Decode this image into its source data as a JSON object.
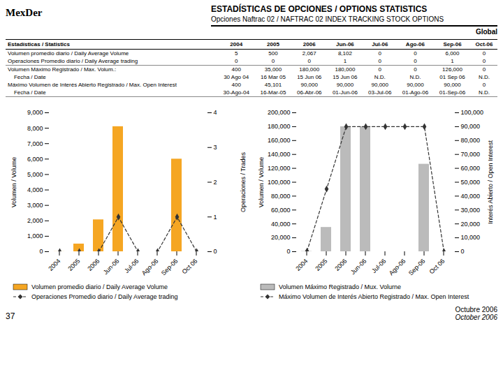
{
  "title": "ESTADÍSTICAS DE OPCIONES / OPTIONS STATISTICS",
  "subtitle": "Opciones Naftrac 02 / NAFTRAC 02 INDEX TRACKING STOCK OPTIONS",
  "annotations": [
    "MexDer",
    "Global",
    "37",
    "Octubre 2006",
    "October 2006"
  ],
  "table": {
    "header": [
      "Estadísticas / Statistics",
      "2004",
      "2005",
      "2006",
      "Jun-06",
      "Jul-06",
      "Ago-06",
      "Sep-06",
      "Oct-06"
    ],
    "sections": [
      [
        [
          "Volumen promedio diario / Daily Average Volume",
          "5",
          "500",
          "2,067",
          "8,102",
          "0",
          "0",
          "6,000",
          "0"
        ],
        [
          "Operaciones Promedio diario / Daily Average trading",
          "0",
          "0",
          "0",
          "1",
          "0",
          "0",
          "1",
          "0"
        ]
      ],
      [
        [
          "Volumen Máximo Registrado / Max. Volum.:",
          "400",
          "35,000",
          "180,000",
          "180,000",
          "0",
          "0",
          "126,000",
          "0"
        ],
        [
          "    Fecha / Date",
          "30 Ago 04",
          "16 Mar 05",
          "15 Jun 06",
          "15 Jun 06",
          "N.D.",
          "N.D.",
          "01 Sep 06",
          "N.D."
        ],
        [
          "Máximo Volumen de Interés Abierto Registrado / Max. Open Interest",
          "400",
          "45,101",
          "90,000",
          "90,000",
          "90,000",
          "90,000",
          "90,000",
          "0"
        ],
        [
          "    Fecha / Date",
          "30-Ago-04",
          "16-Mar-05",
          "06-Abr-06",
          "01-Jun-06",
          "03-Jul-06",
          "01-Ago-06",
          "01-Sep-06",
          "N.D."
        ]
      ]
    ]
  },
  "chart_data": [
    {
      "type": "bar",
      "categories": [
        "2004",
        "2005",
        "2006",
        "Jun-06",
        "Jul-06",
        "Ago-06",
        "Sep-06",
        "Oct 06"
      ],
      "ylabel": "Volumen / Volume",
      "y2label": "Operaciones / Trades",
      "ylim": [
        0,
        9000
      ],
      "yticks": [
        0,
        {
          "value": 1000,
          "label": "1,000"
        },
        {
          "value": 2000,
          "label": "2,000"
        },
        {
          "value": 3000,
          "label": "3,000"
        },
        {
          "value": 4000,
          "label": "4,000"
        },
        {
          "value": 5000,
          "label": "5,000"
        },
        {
          "value": 6000,
          "label": "6,000"
        },
        {
          "value": 7000,
          "label": "7,000"
        },
        {
          "value": 8000,
          "label": "8,000"
        },
        {
          "value": 9000,
          "label": "9,000"
        }
      ],
      "y2lim": [
        0,
        4
      ],
      "y2ticks": [
        0,
        1,
        2,
        3,
        4
      ],
      "grid": false,
      "legend": "bottom",
      "series": [
        {
          "name": "Volumen promedio diario / Daily Average Volume",
          "type": "bar",
          "color": "#F5A623",
          "values": [
            5,
            500,
            2067,
            8102,
            0,
            0,
            6000,
            0
          ]
        },
        {
          "name": "Operaciones Promedio diario / Daily Average trading",
          "type": "line",
          "axis": "y2",
          "color": "#333333",
          "marker": "diamond",
          "line_style": "dashed",
          "values": [
            0,
            0,
            0,
            1,
            0,
            0,
            1,
            0
          ]
        }
      ]
    },
    {
      "type": "bar",
      "categories": [
        "2004",
        "2005",
        "2006",
        "Jun-06",
        "Jul-06",
        "Ago-06",
        "Sep-06",
        "Oct 06"
      ],
      "ylabel": "Volumen / Volume",
      "y2label": "Interés Abierto / Open Interest",
      "ylim": [
        0,
        200000
      ],
      "yticks": [
        0,
        {
          "value": 20000,
          "label": "20,000"
        },
        {
          "value": 40000,
          "label": "40,000"
        },
        {
          "value": 60000,
          "label": "60,000"
        },
        {
          "value": 80000,
          "label": "80,000"
        },
        {
          "value": 100000,
          "label": "100,000"
        },
        {
          "value": 120000,
          "label": "120,000"
        },
        {
          "value": 140000,
          "label": "140,000"
        },
        {
          "value": 160000,
          "label": "160,000"
        },
        {
          "value": 180000,
          "label": "180,000"
        },
        {
          "value": 200000,
          "label": "200,000"
        }
      ],
      "y2lim": [
        0,
        100000
      ],
      "y2ticks": [
        0,
        {
          "value": 10000,
          "label": "10,000"
        },
        {
          "value": 20000,
          "label": "20,000"
        },
        {
          "value": 30000,
          "label": "30,000"
        },
        {
          "value": 40000,
          "label": "40,000"
        },
        {
          "value": 50000,
          "label": "50,000"
        },
        {
          "value": 60000,
          "label": "60,000"
        },
        {
          "value": 70000,
          "label": "70,000"
        },
        {
          "value": 80000,
          "label": "80,000"
        },
        {
          "value": 90000,
          "label": "90,000"
        },
        {
          "value": 100000,
          "label": "100,000"
        }
      ],
      "grid": false,
      "legend": "bottom",
      "series": [
        {
          "name": "Volumen Máximo Registrado / Mux. Volurne",
          "type": "bar",
          "color": "#BBBBBB",
          "values": [
            400,
            35000,
            180000,
            180000,
            0,
            0,
            126000,
            0
          ]
        },
        {
          "name": "Máximo Volumen de Interés Abierto Registrado / Max. Open Interest",
          "type": "line",
          "axis": "y2",
          "color": "#333333",
          "marker": "diamond",
          "line_style": "dashed",
          "values": [
            400,
            45101,
            90000,
            90000,
            90000,
            90000,
            90000,
            0
          ]
        }
      ]
    }
  ]
}
